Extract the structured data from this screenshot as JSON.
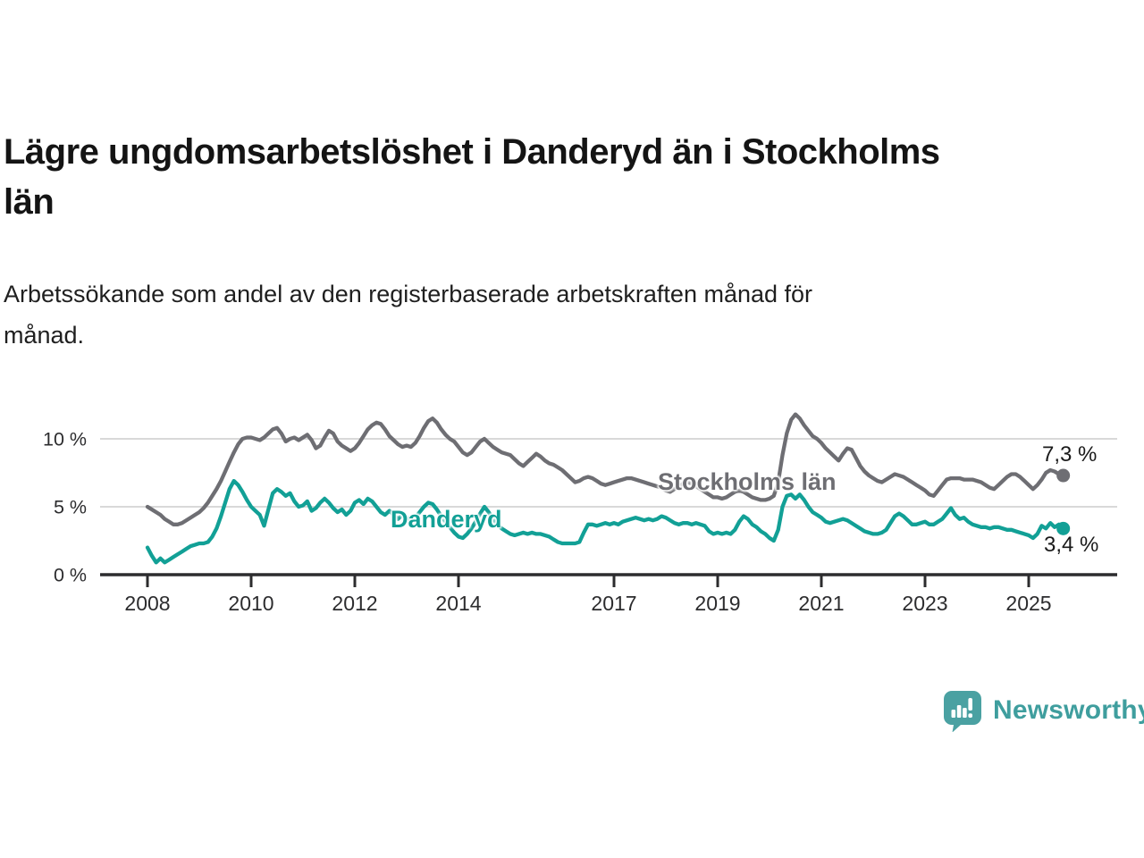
{
  "title": {
    "lines": [
      "Lägre ungdomsarbetslöshet i Danderyd än i Stockholms",
      "län"
    ]
  },
  "subtitle": {
    "lines": [
      "Arbetssökande som andel av den registerbaserade arbetskraften månad för",
      "månad."
    ]
  },
  "branding": {
    "logo_text": "Newsworthy",
    "logo_icon": "bar-chart-speech-bubble-icon",
    "logo_icon_color": "#4aa1a2",
    "logo_text_color": "#3f9e9e"
  },
  "chart_data": {
    "type": "line",
    "title": "Lägre ungdomsarbetslöshet i Danderyd än i Stockholms län",
    "subtitle": "Arbetssökande som andel av den registerbaserade arbetskraften månad för månad.",
    "unit": "%",
    "frequency": "monthly",
    "x_start_year": 2008,
    "x_end": "2025-09",
    "x_tick_years": [
      2008,
      2010,
      2012,
      2014,
      2017,
      2019,
      2021,
      2023,
      2025
    ],
    "y_ticks": [
      {
        "value": 0,
        "label": "0 %"
      },
      {
        "value": 5,
        "label": "5 %"
      },
      {
        "value": 10,
        "label": "10 %"
      }
    ],
    "ylim": [
      0,
      12.5
    ],
    "grid": "horizontal-only",
    "legend_position": "inline-labels",
    "axis_color": "#2c2c2e",
    "grid_color": "#d9d9d9",
    "series": [
      {
        "name": "Stockholms län",
        "color": "#6e6e73",
        "end_label": "7,3 %",
        "end_value": 7.3,
        "values": [
          5.0,
          4.8,
          4.6,
          4.4,
          4.1,
          3.9,
          3.7,
          3.7,
          3.8,
          4.0,
          4.2,
          4.4,
          4.6,
          4.9,
          5.3,
          5.8,
          6.3,
          6.9,
          7.6,
          8.3,
          9.0,
          9.6,
          10.0,
          10.1,
          10.1,
          10.0,
          9.9,
          10.1,
          10.4,
          10.7,
          10.8,
          10.4,
          9.8,
          10.0,
          10.1,
          9.9,
          10.1,
          10.3,
          9.9,
          9.3,
          9.5,
          10.1,
          10.6,
          10.4,
          9.8,
          9.5,
          9.3,
          9.1,
          9.3,
          9.7,
          10.2,
          10.7,
          11.0,
          11.2,
          11.1,
          10.7,
          10.2,
          9.9,
          9.6,
          9.4,
          9.5,
          9.4,
          9.7,
          10.2,
          10.8,
          11.3,
          11.5,
          11.2,
          10.7,
          10.3,
          10.0,
          9.8,
          9.4,
          9.0,
          8.8,
          9.0,
          9.4,
          9.8,
          10.0,
          9.7,
          9.4,
          9.2,
          9.0,
          8.9,
          8.8,
          8.5,
          8.2,
          8.0,
          8.3,
          8.6,
          8.9,
          8.7,
          8.4,
          8.2,
          8.1,
          7.9,
          7.7,
          7.4,
          7.1,
          6.8,
          6.9,
          7.1,
          7.2,
          7.1,
          6.9,
          6.7,
          6.6,
          6.7,
          6.8,
          6.9,
          7.0,
          7.1,
          7.1,
          7.0,
          6.9,
          6.8,
          6.7,
          6.6,
          6.5,
          6.4,
          6.2,
          6.1,
          6.3,
          6.5,
          6.7,
          6.8,
          6.7,
          6.5,
          6.3,
          6.1,
          5.9,
          5.7,
          5.7,
          5.6,
          5.7,
          5.9,
          6.1,
          6.2,
          6.1,
          5.9,
          5.7,
          5.6,
          5.5,
          5.5,
          5.6,
          5.8,
          6.8,
          8.8,
          10.4,
          11.4,
          11.8,
          11.5,
          11.0,
          10.6,
          10.2,
          10.0,
          9.7,
          9.3,
          9.0,
          8.7,
          8.4,
          8.9,
          9.3,
          9.2,
          8.6,
          8.0,
          7.6,
          7.3,
          7.1,
          6.9,
          6.8,
          7.0,
          7.2,
          7.4,
          7.3,
          7.2,
          7.0,
          6.8,
          6.6,
          6.4,
          6.2,
          5.9,
          5.8,
          6.2,
          6.6,
          7.0,
          7.1,
          7.1,
          7.1,
          7.0,
          7.0,
          7.0,
          6.9,
          6.8,
          6.6,
          6.4,
          6.3,
          6.6,
          6.9,
          7.2,
          7.4,
          7.4,
          7.2,
          6.9,
          6.6,
          6.3,
          6.6,
          7.0,
          7.5,
          7.7,
          7.6,
          7.4,
          7.3
        ]
      },
      {
        "name": "Danderyd",
        "color": "#12a096",
        "end_label": "3,4 %",
        "end_value": 3.4,
        "values": [
          2.0,
          1.4,
          0.9,
          1.2,
          0.9,
          1.1,
          1.3,
          1.5,
          1.7,
          1.9,
          2.1,
          2.2,
          2.3,
          2.3,
          2.4,
          2.8,
          3.4,
          4.3,
          5.3,
          6.3,
          6.9,
          6.6,
          6.1,
          5.5,
          5.0,
          4.7,
          4.4,
          3.6,
          4.8,
          6.0,
          6.3,
          6.1,
          5.8,
          6.0,
          5.4,
          5.0,
          5.1,
          5.4,
          4.7,
          4.9,
          5.3,
          5.6,
          5.3,
          4.9,
          4.6,
          4.8,
          4.4,
          4.7,
          5.3,
          5.5,
          5.2,
          5.6,
          5.4,
          5.0,
          4.6,
          4.4,
          4.7,
          4.4,
          4.1,
          4.4,
          4.2,
          4.0,
          4.2,
          4.6,
          5.0,
          5.3,
          5.2,
          4.8,
          4.3,
          3.9,
          3.5,
          3.1,
          2.8,
          2.7,
          3.0,
          3.4,
          3.9,
          4.5,
          5.0,
          4.6,
          4.1,
          3.7,
          3.4,
          3.2,
          3.0,
          2.9,
          3.0,
          3.1,
          3.0,
          3.1,
          3.0,
          3.0,
          2.9,
          2.8,
          2.6,
          2.4,
          2.3,
          2.3,
          2.3,
          2.3,
          2.4,
          3.1,
          3.7,
          3.7,
          3.6,
          3.7,
          3.8,
          3.7,
          3.8,
          3.7,
          3.9,
          4.0,
          4.1,
          4.2,
          4.1,
          4.0,
          4.1,
          4.0,
          4.1,
          4.3,
          4.2,
          4.0,
          3.8,
          3.7,
          3.8,
          3.8,
          3.7,
          3.8,
          3.7,
          3.6,
          3.2,
          3.0,
          3.1,
          3.0,
          3.1,
          3.0,
          3.3,
          3.9,
          4.3,
          4.1,
          3.7,
          3.5,
          3.2,
          3.0,
          2.7,
          2.5,
          3.3,
          5.0,
          5.8,
          5.9,
          5.6,
          5.9,
          5.5,
          5.0,
          4.6,
          4.4,
          4.2,
          3.9,
          3.8,
          3.9,
          4.0,
          4.1,
          4.0,
          3.8,
          3.6,
          3.4,
          3.2,
          3.1,
          3.0,
          3.0,
          3.1,
          3.3,
          3.8,
          4.3,
          4.5,
          4.3,
          4.0,
          3.7,
          3.7,
          3.8,
          3.9,
          3.7,
          3.7,
          3.9,
          4.1,
          4.5,
          4.9,
          4.4,
          4.1,
          4.2,
          3.9,
          3.7,
          3.6,
          3.5,
          3.5,
          3.4,
          3.5,
          3.5,
          3.4,
          3.3,
          3.3,
          3.2,
          3.1,
          3.0,
          2.9,
          2.7,
          3.0,
          3.6,
          3.4,
          3.8,
          3.5,
          3.7,
          3.4
        ]
      }
    ]
  }
}
